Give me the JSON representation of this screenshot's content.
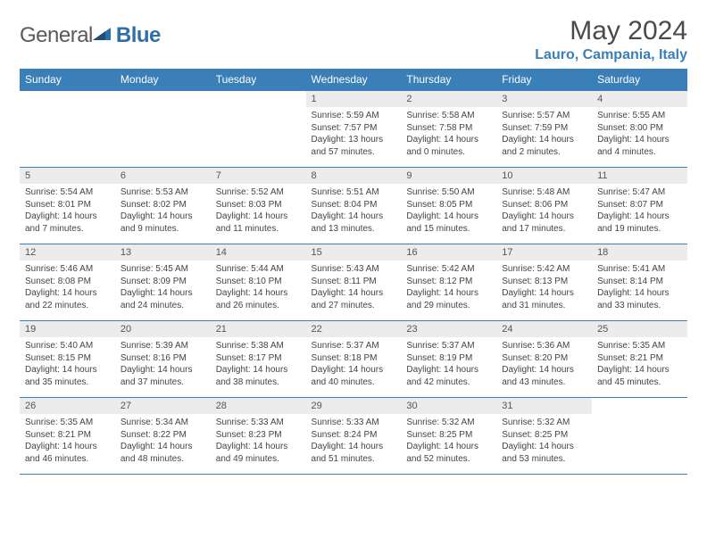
{
  "brand": {
    "text1": "General",
    "text2": "Blue"
  },
  "title": "May 2024",
  "location": "Lauro, Campania, Italy",
  "colors": {
    "header_bg": "#3b7fb8",
    "header_text": "#ffffff",
    "daynum_bg": "#ececec",
    "border": "#3b7fb8",
    "body_text": "#444444",
    "location_text": "#3b7fb8"
  },
  "weekdays": [
    "Sunday",
    "Monday",
    "Tuesday",
    "Wednesday",
    "Thursday",
    "Friday",
    "Saturday"
  ],
  "weeks": [
    [
      null,
      null,
      null,
      {
        "n": "1",
        "sr": "5:59 AM",
        "ss": "7:57 PM",
        "dl": "13 hours and 57 minutes."
      },
      {
        "n": "2",
        "sr": "5:58 AM",
        "ss": "7:58 PM",
        "dl": "14 hours and 0 minutes."
      },
      {
        "n": "3",
        "sr": "5:57 AM",
        "ss": "7:59 PM",
        "dl": "14 hours and 2 minutes."
      },
      {
        "n": "4",
        "sr": "5:55 AM",
        "ss": "8:00 PM",
        "dl": "14 hours and 4 minutes."
      }
    ],
    [
      {
        "n": "5",
        "sr": "5:54 AM",
        "ss": "8:01 PM",
        "dl": "14 hours and 7 minutes."
      },
      {
        "n": "6",
        "sr": "5:53 AM",
        "ss": "8:02 PM",
        "dl": "14 hours and 9 minutes."
      },
      {
        "n": "7",
        "sr": "5:52 AM",
        "ss": "8:03 PM",
        "dl": "14 hours and 11 minutes."
      },
      {
        "n": "8",
        "sr": "5:51 AM",
        "ss": "8:04 PM",
        "dl": "14 hours and 13 minutes."
      },
      {
        "n": "9",
        "sr": "5:50 AM",
        "ss": "8:05 PM",
        "dl": "14 hours and 15 minutes."
      },
      {
        "n": "10",
        "sr": "5:48 AM",
        "ss": "8:06 PM",
        "dl": "14 hours and 17 minutes."
      },
      {
        "n": "11",
        "sr": "5:47 AM",
        "ss": "8:07 PM",
        "dl": "14 hours and 19 minutes."
      }
    ],
    [
      {
        "n": "12",
        "sr": "5:46 AM",
        "ss": "8:08 PM",
        "dl": "14 hours and 22 minutes."
      },
      {
        "n": "13",
        "sr": "5:45 AM",
        "ss": "8:09 PM",
        "dl": "14 hours and 24 minutes."
      },
      {
        "n": "14",
        "sr": "5:44 AM",
        "ss": "8:10 PM",
        "dl": "14 hours and 26 minutes."
      },
      {
        "n": "15",
        "sr": "5:43 AM",
        "ss": "8:11 PM",
        "dl": "14 hours and 27 minutes."
      },
      {
        "n": "16",
        "sr": "5:42 AM",
        "ss": "8:12 PM",
        "dl": "14 hours and 29 minutes."
      },
      {
        "n": "17",
        "sr": "5:42 AM",
        "ss": "8:13 PM",
        "dl": "14 hours and 31 minutes."
      },
      {
        "n": "18",
        "sr": "5:41 AM",
        "ss": "8:14 PM",
        "dl": "14 hours and 33 minutes."
      }
    ],
    [
      {
        "n": "19",
        "sr": "5:40 AM",
        "ss": "8:15 PM",
        "dl": "14 hours and 35 minutes."
      },
      {
        "n": "20",
        "sr": "5:39 AM",
        "ss": "8:16 PM",
        "dl": "14 hours and 37 minutes."
      },
      {
        "n": "21",
        "sr": "5:38 AM",
        "ss": "8:17 PM",
        "dl": "14 hours and 38 minutes."
      },
      {
        "n": "22",
        "sr": "5:37 AM",
        "ss": "8:18 PM",
        "dl": "14 hours and 40 minutes."
      },
      {
        "n": "23",
        "sr": "5:37 AM",
        "ss": "8:19 PM",
        "dl": "14 hours and 42 minutes."
      },
      {
        "n": "24",
        "sr": "5:36 AM",
        "ss": "8:20 PM",
        "dl": "14 hours and 43 minutes."
      },
      {
        "n": "25",
        "sr": "5:35 AM",
        "ss": "8:21 PM",
        "dl": "14 hours and 45 minutes."
      }
    ],
    [
      {
        "n": "26",
        "sr": "5:35 AM",
        "ss": "8:21 PM",
        "dl": "14 hours and 46 minutes."
      },
      {
        "n": "27",
        "sr": "5:34 AM",
        "ss": "8:22 PM",
        "dl": "14 hours and 48 minutes."
      },
      {
        "n": "28",
        "sr": "5:33 AM",
        "ss": "8:23 PM",
        "dl": "14 hours and 49 minutes."
      },
      {
        "n": "29",
        "sr": "5:33 AM",
        "ss": "8:24 PM",
        "dl": "14 hours and 51 minutes."
      },
      {
        "n": "30",
        "sr": "5:32 AM",
        "ss": "8:25 PM",
        "dl": "14 hours and 52 minutes."
      },
      {
        "n": "31",
        "sr": "5:32 AM",
        "ss": "8:25 PM",
        "dl": "14 hours and 53 minutes."
      },
      null
    ]
  ],
  "labels": {
    "sunrise": "Sunrise:",
    "sunset": "Sunset:",
    "daylight": "Daylight:"
  }
}
